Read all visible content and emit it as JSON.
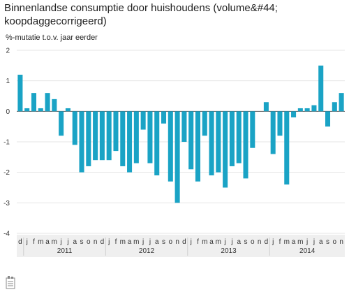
{
  "title": "Binnenlandse consumptie door huishoudens (volume&#44; koopdaggecorrigeerd)",
  "chart_data": {
    "type": "bar",
    "title": "Binnenlandse consumptie door huishoudens (volume&#44; koopdaggecorrigeerd)",
    "ylabel": "%-mutatie t.o.v. jaar eerder",
    "xlabel": "",
    "ylim": [
      -4,
      2
    ],
    "yticks": [
      2,
      1,
      0,
      -1,
      -2,
      -3,
      -4
    ],
    "grid": true,
    "color": "#1aa3c5",
    "categories": [
      "d",
      "j",
      "f",
      "m",
      "a",
      "m",
      "j",
      "j",
      "a",
      "s",
      "o",
      "n",
      "d",
      "j",
      "f",
      "m",
      "a",
      "m",
      "j",
      "j",
      "a",
      "s",
      "o",
      "n",
      "d",
      "j",
      "f",
      "m",
      "a",
      "m",
      "j",
      "j",
      "a",
      "s",
      "o",
      "n",
      "d",
      "j",
      "f",
      "m",
      "a",
      "m",
      "j",
      "j",
      "a",
      "s",
      "o",
      "n"
    ],
    "years": [
      {
        "label": "2011",
        "from": 1,
        "to": 12
      },
      {
        "label": "2012",
        "from": 13,
        "to": 24
      },
      {
        "label": "2013",
        "from": 25,
        "to": 36
      },
      {
        "label": "2014",
        "from": 37,
        "to": 47
      }
    ],
    "values": [
      1.2,
      0.1,
      0.6,
      0.1,
      0.6,
      0.4,
      -0.8,
      0.1,
      -1.1,
      -2.0,
      -1.8,
      -1.6,
      -1.6,
      -1.6,
      -1.3,
      -1.8,
      -2.0,
      -1.7,
      -0.6,
      -1.7,
      -2.1,
      -0.4,
      -2.3,
      -3.0,
      -1.0,
      -1.9,
      -2.3,
      -0.8,
      -2.1,
      -2.0,
      -2.5,
      -1.8,
      -1.7,
      -2.2,
      -1.2,
      0.0,
      0.3,
      -1.4,
      -0.8,
      -2.4,
      -0.2,
      0.1,
      0.1,
      0.2,
      1.5,
      -0.5,
      0.3,
      0.6
    ]
  }
}
